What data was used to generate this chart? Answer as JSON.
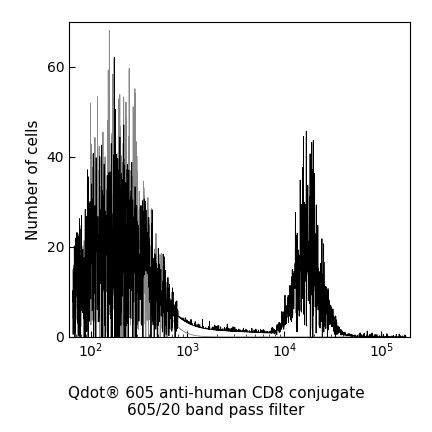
{
  "title_line1": "Qdot® 605 anti-human CD8 conjugate",
  "title_line2": "605/20 band pass filter",
  "ylabel": "Number of cells",
  "xlim_log": [
    60,
    200000
  ],
  "ylim": [
    0,
    70
  ],
  "yticks": [
    0,
    20,
    40,
    60
  ],
  "xtick_values": [
    100,
    1000,
    10000,
    100000
  ],
  "line_color_black": "#000000",
  "line_color_gray": "#888888",
  "bg_color": "#ffffff",
  "title_fontsize": 11,
  "ylabel_fontsize": 11,
  "tick_fontsize": 10
}
